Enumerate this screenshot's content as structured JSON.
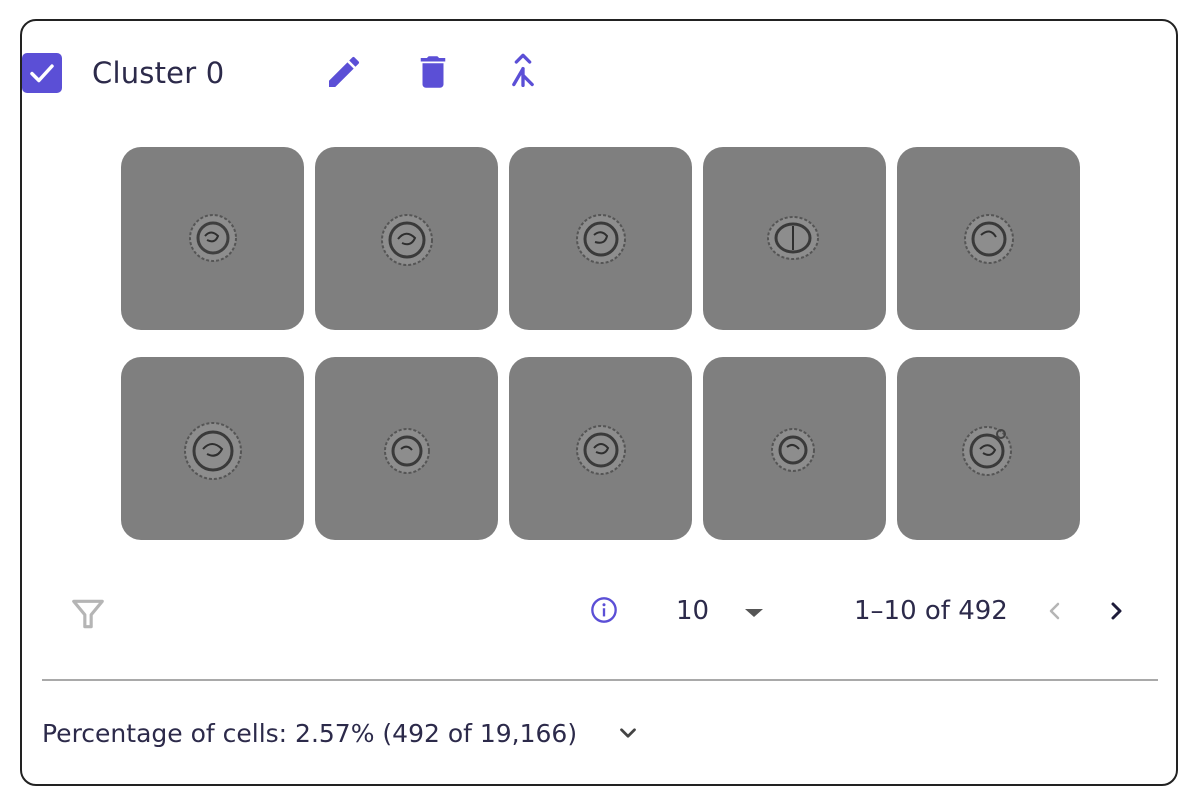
{
  "cluster": {
    "title": "Cluster 0",
    "selected": true
  },
  "toolbar": {
    "icons": [
      "edit-icon",
      "delete-icon",
      "merge-icon"
    ]
  },
  "gallery": {
    "rows": 2,
    "columns": 5,
    "tile_color": "#7f7f7f",
    "image_count": 10
  },
  "pagination": {
    "page_size": "10",
    "range_text": "1–10 of 492",
    "prev_enabled": false,
    "next_enabled": true
  },
  "footer": {
    "percentage_text": "Percentage of cells: 2.57% (492 of 19,166)"
  },
  "colors": {
    "accent": "#5b4fd6",
    "text": "#2c2a4a",
    "disabled": "#b5b5b5"
  }
}
